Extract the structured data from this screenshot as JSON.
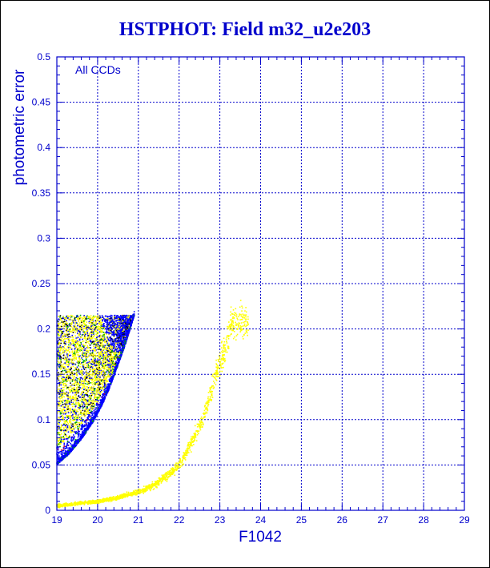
{
  "chart_data": {
    "type": "scatter",
    "title": "HSTPHOT: Field m32_u2e203",
    "xlabel": "F1042",
    "ylabel": "photometric error",
    "annotation": "All CCDs",
    "xlim": [
      19,
      29
    ],
    "ylim": [
      0,
      0.5
    ],
    "xticks": [
      "19",
      "20",
      "21",
      "22",
      "23",
      "24",
      "25",
      "26",
      "27",
      "28",
      "29"
    ],
    "yticks": [
      "0",
      "0.05",
      "0.1",
      "0.15",
      "0.2",
      "0.25",
      "0.3",
      "0.35",
      "0.4",
      "0.45",
      "0.5"
    ],
    "grid": true,
    "colors": {
      "title": "#0000cc",
      "axes": "#0000cc",
      "grid": "#0000cc",
      "dense_band": "#0000ff",
      "scatter_points": "#ffff00",
      "sparse_points_green": "#00aa00",
      "sparse_points_red": "#ff0000",
      "sparse_points_black": "#000000"
    },
    "series": [
      {
        "color": "#ffff00",
        "points": [
          [
            19.0,
            0.005
          ],
          [
            19.3,
            0.006
          ],
          [
            19.6,
            0.008
          ],
          [
            19.9,
            0.009
          ],
          [
            20.2,
            0.011
          ],
          [
            20.5,
            0.014
          ],
          [
            20.8,
            0.018
          ],
          [
            21.1,
            0.022
          ],
          [
            21.4,
            0.028
          ],
          [
            21.7,
            0.038
          ],
          [
            21.9,
            0.045
          ],
          [
            22.1,
            0.058
          ],
          [
            22.3,
            0.075
          ],
          [
            22.5,
            0.092
          ],
          [
            22.7,
            0.118
          ],
          [
            22.9,
            0.148
          ],
          [
            23.1,
            0.175
          ],
          [
            23.3,
            0.205
          ],
          [
            23.5,
            0.21
          ],
          [
            23.7,
            0.205
          ]
        ]
      },
      {
        "color": "#0000ff",
        "points": [
          [
            19.0,
            0.05
          ],
          [
            19.3,
            0.062
          ],
          [
            19.6,
            0.078
          ],
          [
            19.9,
            0.098
          ],
          [
            20.1,
            0.115
          ],
          [
            20.3,
            0.135
          ],
          [
            20.5,
            0.16
          ],
          [
            20.7,
            0.185
          ],
          [
            20.9,
            0.215
          ]
        ]
      },
      {
        "color": "#ffff00",
        "points": [
          [
            19.0,
            0.08
          ],
          [
            19.1,
            0.12
          ],
          [
            19.2,
            0.17
          ],
          [
            19.3,
            0.21
          ],
          [
            19.5,
            0.14
          ],
          [
            19.7,
            0.19
          ],
          [
            19.9,
            0.2
          ],
          [
            20.1,
            0.17
          ],
          [
            20.3,
            0.21
          ],
          [
            20.5,
            0.2
          ]
        ]
      }
    ]
  }
}
